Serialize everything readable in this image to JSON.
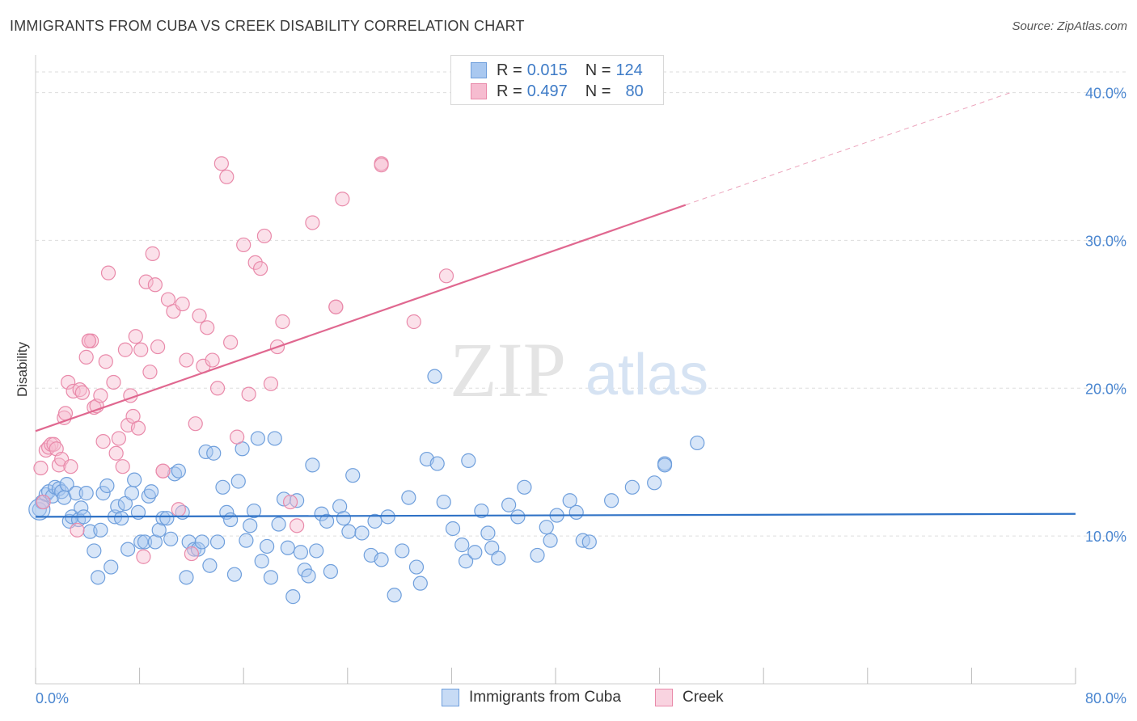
{
  "title": "IMMIGRANTS FROM CUBA VS CREEK DISABILITY CORRELATION CHART",
  "source": "Source: ZipAtlas.com",
  "watermark": {
    "zip": "ZIP",
    "atlas": "atlas"
  },
  "legend": {
    "series": [
      {
        "r_label": "R =",
        "r_value": "0.015",
        "n_label": "N =",
        "n_value": "124"
      },
      {
        "r_label": "R =",
        "r_value": "0.497",
        "n_label": "N =",
        "n_value": "80"
      }
    ]
  },
  "colors": {
    "blue_fill": "#a9c8f0",
    "blue_stroke": "#6f9fdc",
    "blue_line": "#2f72c6",
    "pink_fill": "#f6bcd0",
    "pink_stroke": "#e98aaa",
    "pink_line": "#e06890",
    "axis_text": "#4a86d0",
    "grid": "#dddddd"
  },
  "chart_data": {
    "type": "scatter",
    "title": "IMMIGRANTS FROM CUBA VS CREEK DISABILITY CORRELATION CHART",
    "xlabel": "",
    "ylabel": "Disability",
    "xlim": [
      0,
      80
    ],
    "ylim": [
      0,
      42
    ],
    "x_tick_labels": [
      "0.0%",
      "80.0%"
    ],
    "y_ticks": [
      10,
      20,
      30,
      40
    ],
    "y_tick_labels": [
      "10.0%",
      "20.0%",
      "30.0%",
      "40.0%"
    ],
    "grid": true,
    "series": [
      {
        "name": "Immigrants from Cuba",
        "color": "#6f9fdc",
        "trend": {
          "x": [
            0,
            80
          ],
          "y": [
            11.3,
            11.5
          ]
        },
        "points": [
          [
            0.3,
            11.8
          ],
          [
            0.5,
            12.3
          ],
          [
            0.8,
            12.8
          ],
          [
            1.0,
            13.0
          ],
          [
            1.3,
            12.7
          ],
          [
            1.5,
            13.3
          ],
          [
            1.8,
            13.2
          ],
          [
            2.0,
            13.0
          ],
          [
            2.2,
            12.6
          ],
          [
            2.4,
            13.5
          ],
          [
            2.6,
            11.0
          ],
          [
            2.8,
            11.3
          ],
          [
            3.1,
            12.9
          ],
          [
            3.3,
            11.1
          ],
          [
            3.5,
            11.9
          ],
          [
            3.7,
            11.3
          ],
          [
            3.9,
            12.9
          ],
          [
            4.2,
            10.3
          ],
          [
            4.5,
            9.0
          ],
          [
            4.8,
            7.2
          ],
          [
            5.0,
            10.4
          ],
          [
            5.2,
            12.9
          ],
          [
            5.5,
            13.4
          ],
          [
            5.8,
            7.9
          ],
          [
            6.1,
            11.3
          ],
          [
            6.3,
            12.0
          ],
          [
            6.6,
            11.2
          ],
          [
            6.9,
            12.2
          ],
          [
            7.1,
            9.1
          ],
          [
            7.4,
            12.9
          ],
          [
            7.6,
            13.8
          ],
          [
            7.9,
            11.6
          ],
          [
            8.1,
            9.6
          ],
          [
            8.4,
            9.6
          ],
          [
            8.7,
            12.7
          ],
          [
            8.9,
            13.0
          ],
          [
            9.2,
            9.6
          ],
          [
            9.5,
            10.4
          ],
          [
            9.8,
            11.2
          ],
          [
            10.1,
            11.2
          ],
          [
            10.4,
            9.8
          ],
          [
            10.7,
            14.2
          ],
          [
            11.0,
            14.4
          ],
          [
            11.3,
            11.6
          ],
          [
            11.6,
            7.2
          ],
          [
            11.8,
            9.6
          ],
          [
            12.2,
            9.1
          ],
          [
            12.5,
            9.1
          ],
          [
            12.8,
            9.6
          ],
          [
            13.1,
            15.7
          ],
          [
            13.4,
            8.0
          ],
          [
            13.7,
            15.6
          ],
          [
            14.0,
            9.6
          ],
          [
            14.4,
            13.3
          ],
          [
            14.7,
            11.6
          ],
          [
            15.0,
            11.1
          ],
          [
            15.3,
            7.4
          ],
          [
            15.6,
            13.7
          ],
          [
            15.9,
            15.9
          ],
          [
            16.2,
            9.7
          ],
          [
            16.5,
            10.7
          ],
          [
            16.8,
            11.7
          ],
          [
            17.1,
            16.6
          ],
          [
            17.4,
            8.3
          ],
          [
            17.8,
            9.3
          ],
          [
            18.1,
            7.2
          ],
          [
            18.4,
            16.6
          ],
          [
            18.7,
            10.8
          ],
          [
            19.1,
            12.5
          ],
          [
            19.4,
            9.2
          ],
          [
            19.8,
            5.9
          ],
          [
            20.1,
            12.4
          ],
          [
            20.4,
            8.9
          ],
          [
            20.7,
            7.7
          ],
          [
            21.0,
            7.3
          ],
          [
            21.3,
            14.8
          ],
          [
            21.6,
            9.0
          ],
          [
            22.0,
            11.5
          ],
          [
            22.4,
            11.0
          ],
          [
            22.7,
            7.6
          ],
          [
            23.4,
            12.0
          ],
          [
            23.7,
            11.2
          ],
          [
            24.1,
            10.3
          ],
          [
            24.4,
            14.1
          ],
          [
            25.1,
            10.2
          ],
          [
            25.8,
            8.7
          ],
          [
            26.1,
            11.0
          ],
          [
            26.6,
            8.4
          ],
          [
            27.1,
            11.3
          ],
          [
            27.6,
            6.0
          ],
          [
            28.2,
            9.0
          ],
          [
            28.7,
            12.6
          ],
          [
            29.3,
            7.9
          ],
          [
            29.6,
            6.8
          ],
          [
            30.1,
            15.2
          ],
          [
            30.7,
            20.8
          ],
          [
            30.9,
            14.9
          ],
          [
            31.4,
            12.3
          ],
          [
            32.1,
            10.5
          ],
          [
            32.8,
            9.4
          ],
          [
            33.1,
            8.3
          ],
          [
            33.3,
            15.1
          ],
          [
            33.8,
            8.9
          ],
          [
            34.3,
            11.7
          ],
          [
            34.8,
            10.2
          ],
          [
            35.1,
            9.2
          ],
          [
            35.6,
            8.5
          ],
          [
            36.4,
            12.1
          ],
          [
            37.1,
            11.3
          ],
          [
            37.6,
            13.3
          ],
          [
            38.6,
            8.7
          ],
          [
            39.3,
            10.6
          ],
          [
            39.6,
            9.7
          ],
          [
            40.1,
            11.4
          ],
          [
            41.1,
            12.4
          ],
          [
            41.6,
            11.6
          ],
          [
            42.1,
            9.7
          ],
          [
            42.6,
            9.6
          ],
          [
            44.3,
            12.4
          ],
          [
            45.9,
            13.3
          ],
          [
            47.6,
            13.6
          ],
          [
            48.4,
            14.9
          ],
          [
            50.9,
            16.3
          ],
          [
            48.4,
            14.8
          ]
        ]
      },
      {
        "name": "Creek",
        "color": "#e98aaa",
        "trend": {
          "x": [
            0,
            50
          ],
          "y": [
            17.1,
            32.4
          ]
        },
        "trend_dashed": {
          "x": [
            50,
            75
          ],
          "y": [
            32.4,
            40.0
          ]
        },
        "points": [
          [
            0.4,
            14.6
          ],
          [
            0.6,
            12.3
          ],
          [
            0.8,
            15.8
          ],
          [
            1.0,
            16.0
          ],
          [
            1.2,
            16.2
          ],
          [
            1.4,
            16.2
          ],
          [
            1.6,
            15.9
          ],
          [
            1.8,
            14.8
          ],
          [
            2.0,
            15.2
          ],
          [
            2.2,
            18.0
          ],
          [
            2.3,
            18.3
          ],
          [
            2.5,
            20.4
          ],
          [
            2.7,
            14.7
          ],
          [
            2.9,
            19.8
          ],
          [
            3.2,
            10.4
          ],
          [
            3.4,
            19.9
          ],
          [
            3.6,
            19.7
          ],
          [
            3.9,
            22.1
          ],
          [
            4.1,
            23.2
          ],
          [
            4.3,
            23.2
          ],
          [
            4.5,
            18.7
          ],
          [
            4.7,
            18.8
          ],
          [
            5.0,
            19.5
          ],
          [
            5.2,
            16.4
          ],
          [
            5.4,
            21.8
          ],
          [
            5.6,
            27.8
          ],
          [
            6.0,
            20.4
          ],
          [
            6.2,
            15.6
          ],
          [
            6.4,
            16.6
          ],
          [
            6.7,
            14.7
          ],
          [
            6.9,
            22.6
          ],
          [
            7.1,
            17.5
          ],
          [
            7.3,
            19.5
          ],
          [
            7.5,
            18.1
          ],
          [
            7.7,
            23.5
          ],
          [
            7.9,
            17.3
          ],
          [
            8.1,
            22.6
          ],
          [
            8.3,
            8.6
          ],
          [
            8.5,
            27.2
          ],
          [
            8.8,
            21.1
          ],
          [
            9.0,
            29.1
          ],
          [
            9.2,
            27.0
          ],
          [
            9.4,
            22.8
          ],
          [
            9.8,
            14.4
          ],
          [
            10.2,
            26.0
          ],
          [
            10.6,
            25.2
          ],
          [
            11.0,
            11.8
          ],
          [
            11.3,
            25.7
          ],
          [
            11.6,
            21.9
          ],
          [
            12.0,
            8.8
          ],
          [
            12.3,
            17.6
          ],
          [
            12.6,
            24.9
          ],
          [
            12.9,
            21.5
          ],
          [
            13.2,
            24.1
          ],
          [
            13.6,
            21.9
          ],
          [
            14.0,
            20.0
          ],
          [
            14.3,
            35.2
          ],
          [
            14.7,
            34.3
          ],
          [
            15.0,
            23.1
          ],
          [
            15.5,
            16.7
          ],
          [
            16.0,
            29.7
          ],
          [
            16.4,
            19.6
          ],
          [
            16.9,
            28.5
          ],
          [
            17.3,
            28.1
          ],
          [
            17.6,
            30.3
          ],
          [
            18.1,
            20.3
          ],
          [
            18.6,
            22.8
          ],
          [
            19.0,
            24.5
          ],
          [
            19.6,
            12.3
          ],
          [
            20.1,
            10.7
          ],
          [
            21.3,
            31.2
          ],
          [
            23.1,
            25.5
          ],
          [
            23.6,
            32.8
          ],
          [
            26.6,
            35.2
          ],
          [
            29.1,
            24.5
          ],
          [
            31.6,
            27.6
          ],
          [
            26.6,
            35.1
          ],
          [
            4.1,
            23.2
          ],
          [
            9.8,
            14.4
          ],
          [
            23.1,
            25.5
          ]
        ]
      }
    ]
  },
  "bottom_legend": [
    {
      "label": "Immigrants from Cuba"
    },
    {
      "label": "Creek"
    }
  ]
}
